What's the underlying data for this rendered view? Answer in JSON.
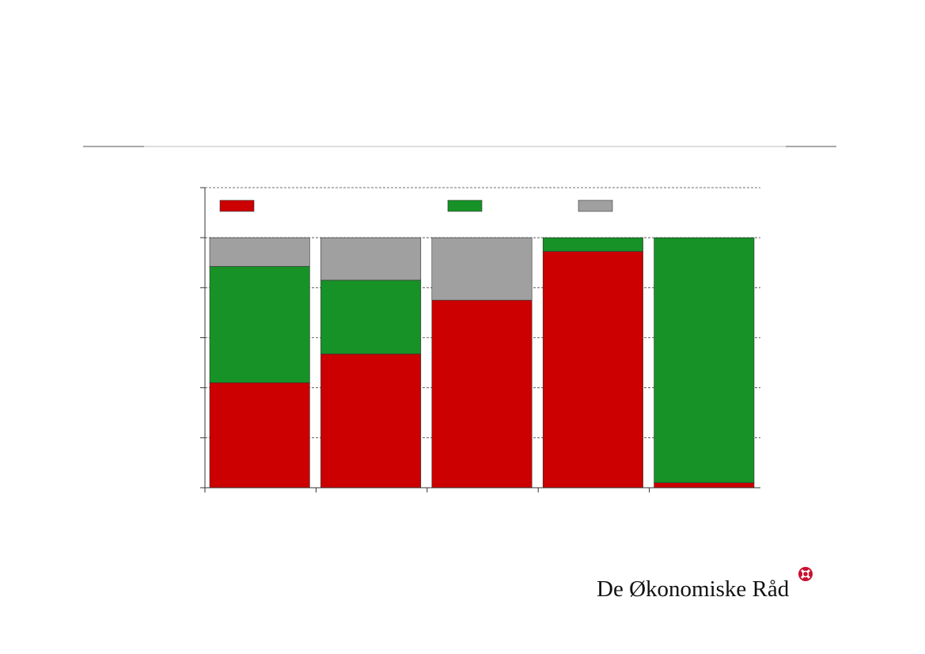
{
  "chart_data": {
    "type": "stacked-bar",
    "categories": [
      null,
      null,
      null,
      null,
      null
    ],
    "series": [
      {
        "color": "#cc0000",
        "values": [
          42,
          53.5,
          75,
          94.5,
          2
        ]
      },
      {
        "color": "#169226",
        "values": [
          46.5,
          29.5,
          0,
          5.5,
          98
        ]
      },
      {
        "color": "#a0a0a0",
        "values": [
          11.5,
          17,
          25,
          0,
          0
        ]
      }
    ],
    "ylim": [
      0,
      120
    ],
    "yticks": [
      0,
      20,
      40,
      60,
      80,
      100,
      120
    ],
    "grid": true
  },
  "logo": {
    "text": "De Økonomiske Råd"
  }
}
